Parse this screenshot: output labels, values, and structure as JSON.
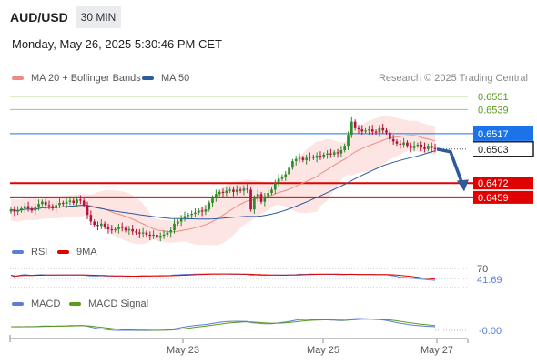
{
  "header": {
    "symbol": "AUD/USD",
    "interval": "30 MIN",
    "datetime": "Monday, May 26, 2025 5:30:46 PM CET"
  },
  "legend": {
    "ma20_label": "MA 20 + Bollinger Bands",
    "ma50_label": "MA 50",
    "credit": "Research © 2025 Trading Central",
    "rsi_label": "RSI",
    "rsi_ma_label": "9MA",
    "macd_label": "MACD",
    "macd_signal_label": "MACD Signal"
  },
  "colors": {
    "ma20": "#f08a80",
    "bollinger_fill": "#fbd7d3",
    "ma50": "#2d5a9c",
    "resistance": "#9ccb6d",
    "pivot": "#1a73e8",
    "support": "#e00000",
    "candle_up": "#2e8b2e",
    "candle_down": "#b5123e",
    "rsi": "#5b7fd6",
    "rsi_ma": "#e00000",
    "macd": "#5b7fd6",
    "macd_signal": "#5a9a1e",
    "arrow": "#2d5a9c"
  },
  "chart_data": [
    {
      "type": "candlestick",
      "title": "AUD/USD",
      "price_range": [
        0.6415,
        0.656
      ],
      "x_labels": [
        "May 23",
        "May 25",
        "May 27"
      ],
      "levels": [
        {
          "value": 0.6551,
          "label": "0.6551",
          "kind": "resistance"
        },
        {
          "value": 0.6539,
          "label": "0.6539",
          "kind": "resistance"
        },
        {
          "value": 0.6517,
          "label": "0.6517",
          "kind": "pivot"
        },
        {
          "value": 0.6503,
          "label": "0.6503",
          "kind": "last"
        },
        {
          "value": 0.6472,
          "label": "0.6472",
          "kind": "support"
        },
        {
          "value": 0.6459,
          "label": "0.6459",
          "kind": "support"
        }
      ],
      "series": [
        {
          "name": "MA 20 + Bollinger Bands"
        },
        {
          "name": "MA 50"
        }
      ],
      "close": [
        0.6448,
        0.6446,
        0.6447,
        0.6449,
        0.6451,
        0.6449,
        0.6447,
        0.645,
        0.6453,
        0.6455,
        0.6452,
        0.6451,
        0.6449,
        0.6452,
        0.6454,
        0.6453,
        0.6455,
        0.6456,
        0.6454,
        0.6457,
        0.6456,
        0.6452,
        0.6443,
        0.6437,
        0.6434,
        0.6433,
        0.6435,
        0.6432,
        0.643,
        0.6429,
        0.643,
        0.6432,
        0.6431,
        0.6429,
        0.643,
        0.6428,
        0.6427,
        0.6426,
        0.6427,
        0.6425,
        0.6424,
        0.6425,
        0.6423,
        0.6424,
        0.6425,
        0.6427,
        0.6429,
        0.6435,
        0.6437,
        0.644,
        0.6442,
        0.6443,
        0.6444,
        0.6445,
        0.6447,
        0.6446,
        0.6448,
        0.6454,
        0.6458,
        0.6462,
        0.6464,
        0.6463,
        0.6465,
        0.6466,
        0.6464,
        0.6466,
        0.6465,
        0.6467,
        0.6466,
        0.6448,
        0.6458,
        0.6462,
        0.6455,
        0.646,
        0.6463,
        0.6466,
        0.6472,
        0.6476,
        0.6478,
        0.648,
        0.6486,
        0.6492,
        0.6494,
        0.6495,
        0.6493,
        0.6495,
        0.6496,
        0.6495,
        0.6497,
        0.6496,
        0.6498,
        0.6499,
        0.6498,
        0.65,
        0.6499,
        0.6502,
        0.6506,
        0.6516,
        0.6528,
        0.6522,
        0.6521,
        0.6519,
        0.652,
        0.6521,
        0.6519,
        0.6518,
        0.6522,
        0.652,
        0.6518,
        0.6512,
        0.651,
        0.6508,
        0.6507,
        0.6509,
        0.6506,
        0.6504,
        0.6506,
        0.6507,
        0.6505,
        0.6503,
        0.6506,
        0.6504,
        0.6503
      ]
    },
    {
      "type": "line",
      "title": "RSI",
      "levels": [
        {
          "value": 70,
          "label": "70"
        }
      ],
      "last_value_label": "41.69",
      "series": [
        {
          "name": "RSI"
        },
        {
          "name": "9MA"
        }
      ]
    },
    {
      "type": "line",
      "title": "MACD",
      "last_value_label": "-0.00",
      "series": [
        {
          "name": "MACD"
        },
        {
          "name": "MACD Signal"
        }
      ]
    }
  ]
}
